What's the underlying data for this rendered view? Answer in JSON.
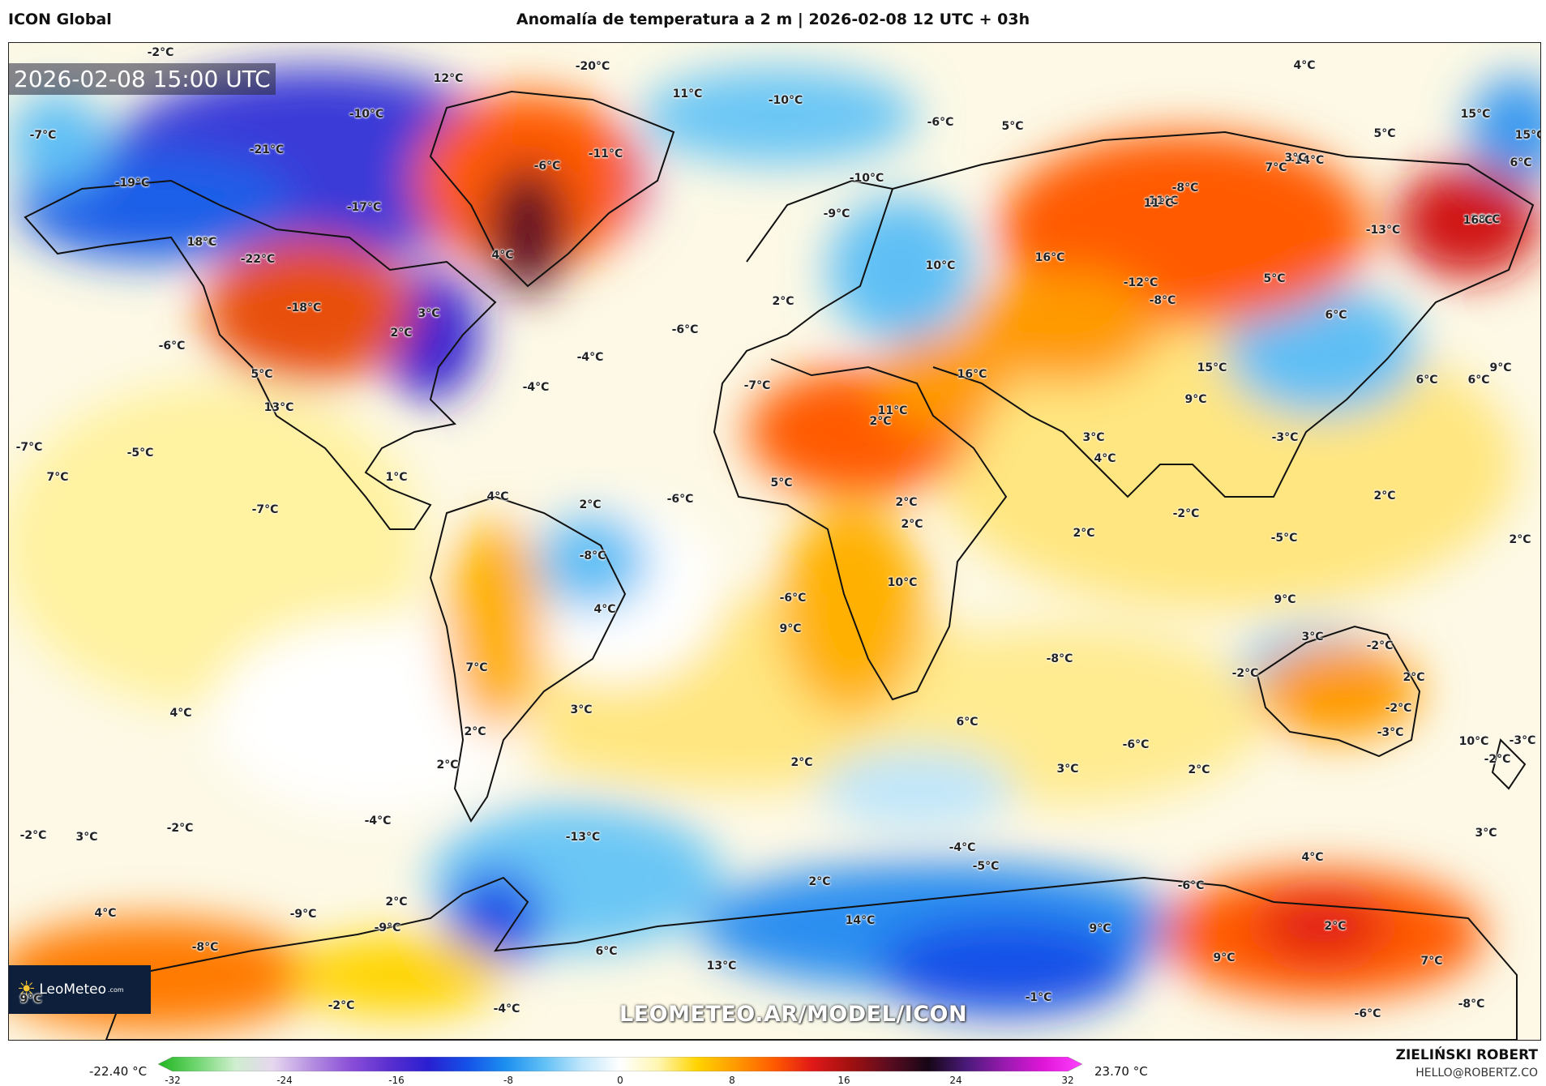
{
  "header": {
    "model": "ICON Global",
    "title": "Anomalía de temperatura a 2 m | 2026-02-08 12 UTC + 03h"
  },
  "map": {
    "timestamp": "2026-02-08 15:00 UTC",
    "watermark": "LEOMETEO.AR/MODEL/ICON",
    "logo_text": "LeoMeteo",
    "logo_suffix": ".com",
    "labels": [
      "-2°C",
      "12°C",
      "-20°C",
      "11°C",
      "-10°C",
      "15°C",
      "4°C",
      "-7°C",
      "-10°C",
      "-21°C",
      "-17°C",
      "-19°C",
      "15°C",
      "-11°C",
      "5°C",
      "-6°C",
      "5°C",
      "-14°C",
      "7°C",
      "3°C",
      "6°C",
      "-6°C",
      "11°C",
      "18°C",
      "-4°C",
      "-22°C",
      "4°C",
      "-10°C",
      "-9°C",
      "-8°C",
      "11°C",
      "-13°C",
      "16°C",
      "18°C",
      "-18°C",
      "3°C",
      "2°C",
      "-6°C",
      "-6°C",
      "10°C",
      "16°C",
      "5°C",
      "-12°C",
      "-8°C",
      "6°C",
      "2°C",
      "-4°C",
      "-4°C",
      "5°C",
      "-7°C",
      "16°C",
      "9°C",
      "15°C",
      "6°C",
      "6°C",
      "11°C",
      "13°C",
      "9°C",
      "2°C",
      "3°C",
      "-3°C",
      "-7°C",
      "-5°C",
      "7°C",
      "1°C",
      "4°C",
      "5°C",
      "-6°C",
      "2°C",
      "2°C",
      "2°C",
      "-2°C",
      "2°C",
      "-7°C",
      "4°C",
      "2°C",
      "2°C",
      "-8°C",
      "-5°C",
      "4°C",
      "9°C",
      "-6°C",
      "10°C",
      "7°C",
      "9°C",
      "-8°C",
      "3°C",
      "-2°C",
      "-2°C",
      "2°C",
      "3°C",
      "4°C",
      "-3°C",
      "2°C",
      "-2°C",
      "6°C",
      "-3°C",
      "3°C",
      "-6°C",
      "10°C",
      "-2°C",
      "2°C",
      "2°C",
      "-2°C",
      "3°C",
      "-2°C",
      "-4°C",
      "-13°C",
      "2°C",
      "3°C",
      "-4°C",
      "4°C",
      "-6°C",
      "2°C",
      "2°C",
      "-5°C",
      "4°C",
      "-9°C",
      "-9°C",
      "14°C",
      "9°C",
      "2°C",
      "-8°C",
      "6°C",
      "13°C",
      "9°C",
      "7°C",
      "9°C",
      "-2°C",
      "-4°C",
      "-8°C",
      "-6°C",
      "-1°C"
    ]
  },
  "colorbar": {
    "min_label": "-22.40 °C",
    "max_label": "23.70 °C",
    "ticks": [
      "-32",
      "-24",
      "-16",
      "-8",
      "0",
      "8",
      "16",
      "24",
      "32"
    ],
    "colors": [
      "#1fb51f",
      "#6fd66f",
      "#cfeecf",
      "#e6d6ef",
      "#b48ee0",
      "#8a4fd8",
      "#5a2fd0",
      "#2a1fd0",
      "#1550e8",
      "#1c8ef0",
      "#5fbff5",
      "#bfe6fb",
      "#ffffff",
      "#fff6b0",
      "#ffd400",
      "#ff9a00",
      "#ff5a00",
      "#e01818",
      "#a01010",
      "#5a0c20",
      "#160616",
      "#4b1a7a",
      "#9a1ab0",
      "#e016d8",
      "#ff40ff"
    ]
  },
  "footer": {
    "author": "ZIELIŃSKI ROBERT",
    "email": "HELLO@ROBERTZ.CO"
  }
}
